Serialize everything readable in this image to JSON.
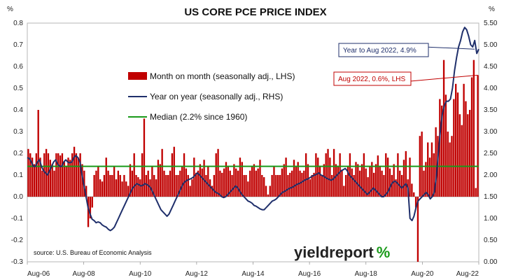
{
  "chart_data": {
    "type": "bar",
    "title": "US CORE PCE PRICE INDEX",
    "left_unit": "%",
    "right_unit": "%",
    "x_ticks": [
      "Aug-06",
      "Aug-08",
      "Aug-10",
      "Aug-12",
      "Aug-14",
      "Aug-16",
      "Aug-18",
      "Aug-20",
      "Aug-22"
    ],
    "y_left": {
      "min": -0.3,
      "max": 0.8,
      "step": 0.1,
      "ticks": [
        "-0.3",
        "-0.2",
        "-0.1",
        "0.0",
        "0.1",
        "0.2",
        "0.3",
        "0.4",
        "0.5",
        "0.6",
        "0.7",
        "0.8"
      ]
    },
    "y_right": {
      "min": 0.0,
      "max": 5.5,
      "step": 0.5,
      "ticks": [
        "0.00",
        "0.50",
        "1.00",
        "1.50",
        "2.00",
        "2.50",
        "3.00",
        "3.50",
        "4.00",
        "4.50",
        "5.00",
        "5.50"
      ]
    },
    "start": "Aug-06",
    "end": "Aug-22",
    "series": [
      {
        "name": "Month on month (seasonally adj., LHS)",
        "axis": "left",
        "kind": "bar",
        "color": "#c00000"
      },
      {
        "name": "Year on year (seasonally adj., RHS)",
        "axis": "right",
        "kind": "line",
        "color": "#1f2f6b"
      },
      {
        "name": "Median (2.2% since 1960)",
        "axis": "right",
        "kind": "hline",
        "color": "#1a9a1a",
        "value": 2.2
      }
    ],
    "mom_values": [
      0.22,
      0.2,
      0.18,
      0.15,
      0.2,
      0.4,
      0.18,
      0.12,
      0.2,
      0.22,
      0.2,
      0.17,
      0.15,
      0.12,
      0.2,
      0.2,
      0.19,
      0.2,
      0.16,
      0.14,
      0.18,
      0.17,
      0.2,
      0.23,
      0.2,
      0.18,
      0.2,
      0.15,
      0.12,
      0.05,
      -0.14,
      -0.1,
      -0.05,
      0.1,
      0.12,
      0.14,
      0.08,
      0.07,
      0.1,
      0.18,
      0.12,
      0.1,
      0.1,
      0.14,
      0.08,
      0.12,
      0.1,
      0.07,
      0.1,
      0.07,
      0.05,
      0.15,
      0.12,
      0.2,
      0.1,
      0.09,
      0.08,
      0.2,
      0.36,
      0.1,
      0.12,
      0.08,
      0.14,
      0.1,
      0.08,
      0.17,
      0.15,
      0.22,
      0.12,
      0.1,
      0.1,
      0.12,
      0.2,
      0.23,
      0.1,
      0.1,
      0.12,
      0.14,
      0.2,
      0.13,
      0.1,
      0.05,
      0.08,
      0.18,
      0.11,
      0.12,
      0.15,
      0.13,
      0.17,
      0.1,
      0.14,
      0.08,
      0.05,
      0.1,
      0.2,
      0.22,
      0.12,
      0.11,
      0.13,
      0.16,
      0.14,
      0.12,
      0.1,
      0.15,
      0.13,
      0.12,
      0.18,
      0.16,
      0.1,
      0.1,
      0.07,
      0.12,
      0.14,
      0.15,
      0.12,
      0.13,
      0.17,
      0.1,
      0.09,
      0.05,
      0.01,
      0.05,
      0.1,
      0.14,
      0.1,
      0.1,
      0.1,
      0.13,
      0.15,
      0.18,
      0.1,
      0.11,
      0.12,
      0.17,
      0.14,
      0.16,
      0.12,
      0.11,
      0.12,
      0.2,
      0.15,
      0.08,
      0.1,
      0.11,
      0.2,
      0.18,
      0.14,
      0.1,
      0.15,
      0.2,
      0.22,
      0.18,
      0.1,
      0.22,
      0.15,
      0.14,
      0.2,
      0.12,
      0.05,
      0.1,
      0.14,
      0.2,
      0.13,
      0.1,
      0.16,
      0.15,
      0.12,
      0.15,
      0.2,
      0.13,
      0.09,
      0.14,
      0.16,
      0.11,
      0.15,
      0.19,
      0.14,
      0.12,
      0.1,
      0.2,
      0.18,
      0.13,
      0.1,
      0.15,
      0.08,
      0.2,
      0.12,
      0.1,
      0.17,
      0.21,
      0.08,
      0.18,
      0.06,
      0.02,
      -0.05,
      -0.3,
      0.28,
      0.3,
      0.12,
      0.16,
      0.25,
      0.18,
      0.25,
      0.2,
      0.32,
      0.28,
      0.45,
      0.42,
      0.63,
      0.47,
      0.3,
      0.25,
      0.28,
      0.45,
      0.52,
      0.48,
      0.38,
      0.33,
      0.52,
      0.44,
      0.38,
      0.4,
      0.55,
      0.63,
      0.04,
      0.56
    ],
    "yoy_values": [
      2.4,
      2.38,
      2.3,
      2.2,
      2.2,
      2.3,
      2.35,
      2.2,
      2.1,
      2.05,
      2.0,
      2.1,
      2.2,
      2.3,
      2.35,
      2.25,
      2.2,
      2.2,
      2.3,
      2.35,
      2.3,
      2.28,
      2.3,
      2.4,
      2.45,
      2.4,
      2.3,
      2.0,
      1.75,
      1.5,
      1.25,
      1.1,
      0.98,
      0.95,
      0.9,
      0.92,
      0.9,
      0.85,
      0.82,
      0.8,
      0.75,
      0.72,
      0.75,
      0.8,
      0.9,
      1.0,
      1.1,
      1.2,
      1.3,
      1.4,
      1.5,
      1.6,
      1.7,
      1.75,
      1.8,
      1.78,
      1.75,
      1.76,
      1.8,
      1.78,
      1.75,
      1.7,
      1.6,
      1.5,
      1.4,
      1.3,
      1.2,
      1.15,
      1.1,
      1.05,
      1.1,
      1.2,
      1.3,
      1.4,
      1.5,
      1.6,
      1.7,
      1.8,
      1.85,
      1.88,
      1.9,
      1.92,
      1.95,
      2.0,
      2.05,
      2.0,
      1.95,
      1.9,
      1.85,
      1.8,
      1.75,
      1.7,
      1.65,
      1.6,
      1.58,
      1.55,
      1.5,
      1.48,
      1.5,
      1.55,
      1.6,
      1.65,
      1.7,
      1.75,
      1.7,
      1.62,
      1.55,
      1.5,
      1.45,
      1.4,
      1.38,
      1.35,
      1.3,
      1.28,
      1.25,
      1.22,
      1.2,
      1.2,
      1.25,
      1.3,
      1.35,
      1.4,
      1.42,
      1.45,
      1.5,
      1.55,
      1.6,
      1.62,
      1.65,
      1.68,
      1.7,
      1.72,
      1.75,
      1.78,
      1.8,
      1.82,
      1.85,
      1.88,
      1.9,
      1.92,
      1.95,
      1.98,
      2.0,
      2.02,
      2.05,
      2.0,
      1.98,
      1.95,
      1.92,
      1.9,
      1.88,
      1.9,
      1.95,
      2.0,
      2.05,
      2.1,
      2.12,
      2.15,
      2.1,
      2.0,
      1.95,
      1.9,
      1.85,
      1.8,
      1.75,
      1.7,
      1.65,
      1.6,
      1.55,
      1.6,
      1.65,
      1.7,
      1.65,
      1.6,
      1.55,
      1.5,
      1.5,
      1.55,
      1.6,
      1.7,
      1.8,
      1.85,
      1.85,
      1.8,
      1.75,
      1.7,
      1.75,
      1.8,
      1.7,
      1.0,
      0.95,
      1.05,
      1.25,
      1.4,
      1.45,
      1.5,
      1.55,
      1.6,
      1.55,
      1.45,
      1.5,
      1.6,
      1.95,
      2.5,
      3.0,
      3.4,
      3.6,
      3.7,
      3.7,
      3.75,
      4.0,
      4.4,
      4.7,
      4.95,
      5.1,
      5.3,
      5.4,
      5.35,
      5.2,
      5.0,
      4.95,
      5.1,
      4.8,
      4.9
    ]
  },
  "callouts": {
    "yoy": "Year to Aug 2022, 4.9%",
    "mom": "Aug 2022, 0.6%, LHS"
  },
  "source": "source: U.S. Bureau of Economic Analysis",
  "logo": {
    "main": "yieldreport",
    "accent": "%"
  }
}
